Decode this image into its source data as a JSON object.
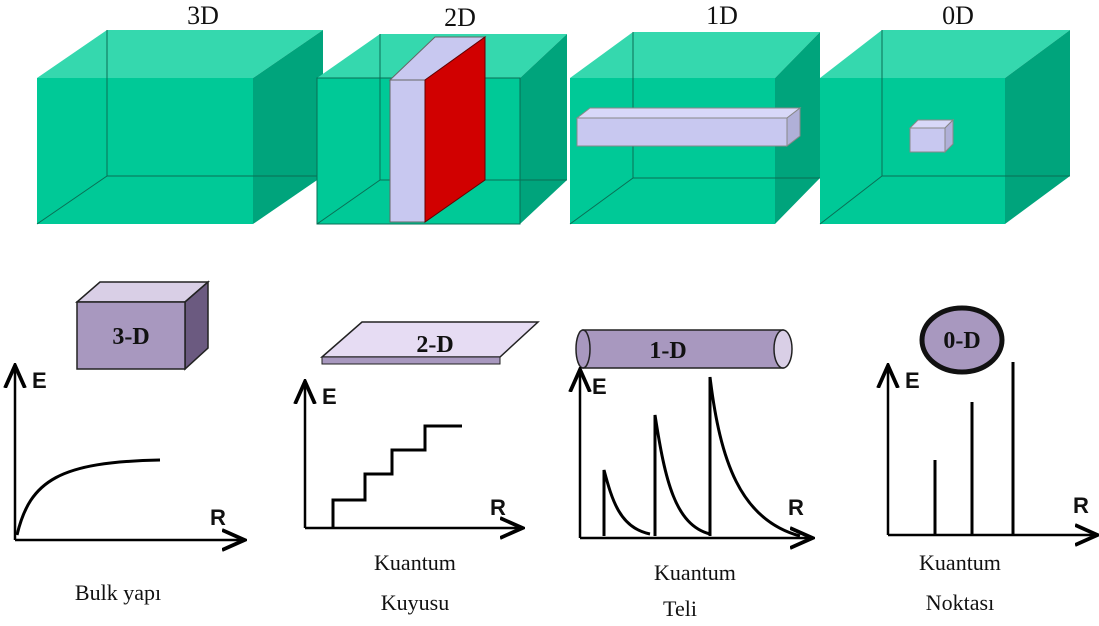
{
  "cubes": [
    {
      "label": "3D"
    },
    {
      "label": "2D"
    },
    {
      "label": "1D"
    },
    {
      "label": "0D"
    }
  ],
  "panels": [
    {
      "shape_label": "3-D",
      "y_axis": "E",
      "x_axis": "R",
      "caption": [
        "Bulk yapı"
      ]
    },
    {
      "shape_label": "2-D",
      "y_axis": "E",
      "x_axis": "R",
      "caption": [
        "Kuantum",
        "Kuyusu"
      ]
    },
    {
      "shape_label": "1-D",
      "y_axis": "E",
      "x_axis": "R",
      "caption": [
        "Kuantum",
        "Teli"
      ]
    },
    {
      "shape_label": "0-D",
      "y_axis": "E",
      "x_axis": "R",
      "caption": [
        "Kuantum",
        "Noktası"
      ]
    }
  ]
}
